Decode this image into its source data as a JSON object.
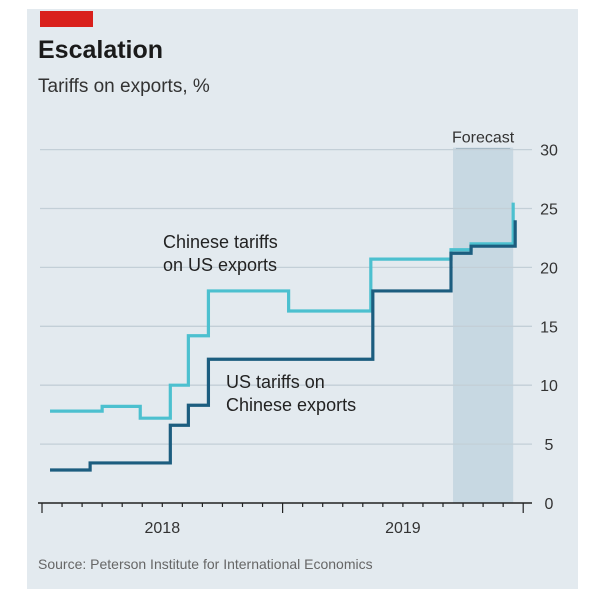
{
  "header": {
    "title": "Escalation",
    "subtitle": "Tariffs on exports, %"
  },
  "source": "Source: Peterson Institute for International Economics",
  "colors": {
    "us": "#1c5d7f",
    "china": "#4cc0cf",
    "forecast": "#c7d8e2",
    "accent": "#d9201c"
  },
  "chart_data": {
    "type": "line",
    "step": true,
    "title": "Escalation",
    "subtitle": "Tariffs on exports, %",
    "x_unit": "months since Jan 2018",
    "xlim": [
      0,
      24
    ],
    "ylim": [
      0,
      30
    ],
    "yticks": [
      0,
      5,
      10,
      15,
      20,
      25,
      30
    ],
    "xtick_labels": [
      {
        "label": "2018",
        "at": 6
      },
      {
        "label": "2019",
        "at": 18
      }
    ],
    "grid": true,
    "forecast": {
      "label": "Forecast",
      "from": 20.5,
      "to": 23.5
    },
    "series": [
      {
        "name": "Chinese tariffs on US exports",
        "label_lines": [
          "Chinese tariffs",
          "on US exports"
        ],
        "key": "china",
        "points": [
          [
            0.4,
            7.8
          ],
          [
            3.0,
            8.2
          ],
          [
            4.9,
            7.2
          ],
          [
            6.4,
            10.0
          ],
          [
            7.3,
            14.2
          ],
          [
            8.3,
            18.0
          ],
          [
            12.3,
            16.3
          ],
          [
            16.4,
            20.7
          ],
          [
            20.4,
            21.5
          ],
          [
            21.4,
            22.0
          ],
          [
            23.5,
            25.5
          ]
        ]
      },
      {
        "name": "US tariffs on Chinese exports",
        "label_lines": [
          "US tariffs on",
          "Chinese exports"
        ],
        "key": "us",
        "points": [
          [
            0.4,
            2.8
          ],
          [
            2.4,
            3.4
          ],
          [
            6.4,
            6.6
          ],
          [
            7.3,
            8.3
          ],
          [
            8.3,
            12.2
          ],
          [
            16.5,
            18.0
          ],
          [
            20.4,
            21.2
          ],
          [
            21.4,
            21.8
          ],
          [
            23.6,
            24.0
          ]
        ]
      }
    ]
  }
}
